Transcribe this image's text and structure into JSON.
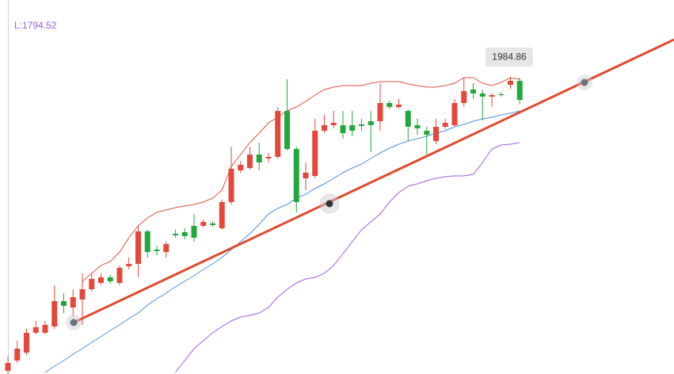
{
  "chart_data": {
    "type": "candlestick",
    "ylim": [
      1797.5,
      2033.5
    ],
    "info_label": "L:1794.52",
    "annotation": "1984.86",
    "up_color": "#e5483a",
    "down_color": "#22a83a",
    "open": [
      1799.5,
      1806,
      1811,
      1823.5,
      1823.5,
      1827.5,
      1843.5,
      1839.5,
      1844.5,
      1851,
      1855,
      1858.5,
      1855,
      1865.5,
      1867,
      1887.5,
      1876,
      1874.5,
      1886,
      1887,
      1891,
      1891,
      1892.5,
      1889.5,
      1906,
      1926,
      1927.5,
      1936,
      1933.5,
      1934.5,
      1963.5,
      1939.5,
      1921,
      1922.5,
      1951,
      1954.5,
      1954.5,
      1954.5,
      1955,
      1957,
      1957,
      1968.5,
      1966,
      1963.5,
      1954.5,
      1951,
      1944.5,
      1953.5,
      1954.5,
      1968.5,
      1977,
      1974.5,
      1972.5,
      1974,
      1980,
      1982.5
    ],
    "high": [
      1808.5,
      1818.5,
      1826,
      1831,
      1831,
      1853.5,
      1848.5,
      1851,
      1861,
      1861,
      1861,
      1860,
      1866,
      1871,
      1891,
      1888.5,
      1878.5,
      1881,
      1888.5,
      1889.5,
      1898.5,
      1895,
      1894,
      1907.5,
      1941,
      1932,
      1941,
      1943.5,
      1937,
      1966,
      1983.5,
      1941,
      1931,
      1958.5,
      1961,
      1963.5,
      1963.5,
      1963.5,
      1958.5,
      1963.5,
      1981,
      1970,
      1971,
      1964.5,
      1958.5,
      1953.5,
      1958.5,
      1958.5,
      1971,
      1984.5,
      1981,
      1977,
      1974.5,
      1975.5,
      1985,
      1984.5
    ],
    "low": [
      1797.5,
      1804.5,
      1809.5,
      1822.5,
      1822.5,
      1826,
      1836,
      1833.5,
      1828.5,
      1849.5,
      1853.5,
      1854.5,
      1853.5,
      1863.5,
      1858.5,
      1871,
      1872.5,
      1871,
      1883.5,
      1882.5,
      1881,
      1890,
      1890.5,
      1888.5,
      1904.5,
      1924.5,
      1926.5,
      1926,
      1931,
      1933.5,
      1938.5,
      1899.5,
      1913.5,
      1921,
      1949.5,
      1952.5,
      1946,
      1947.5,
      1951,
      1937.5,
      1951,
      1964.5,
      1965,
      1944.5,
      1948.5,
      1936,
      1942.5,
      1952,
      1953.5,
      1966,
      1971,
      1957.5,
      1966,
      1972.5,
      1977.5,
      1968
    ],
    "close": [
      1804.5,
      1813.5,
      1823.5,
      1827,
      1828.5,
      1843.5,
      1840.5,
      1846,
      1851,
      1857.5,
      1858.5,
      1856,
      1864.5,
      1867,
      1887.5,
      1874.5,
      1875,
      1879.5,
      1885,
      1884.5,
      1883.5,
      1893.5,
      1891.5,
      1906,
      1927,
      1929.5,
      1936,
      1931,
      1934.5,
      1963.5,
      1939.5,
      1906,
      1924.5,
      1951,
      1954.5,
      1956,
      1949.5,
      1951,
      1954,
      1954.5,
      1968.5,
      1966,
      1967.5,
      1953.5,
      1952.5,
      1948.5,
      1953.5,
      1956,
      1968.5,
      1976,
      1974.5,
      1972.5,
      1973.5,
      1973.5,
      1982.5,
      1970.5
    ],
    "bands": [
      {
        "color": "#e0503c",
        "values": [
          null,
          null,
          null,
          null,
          null,
          null,
          null,
          null,
          1856,
          1861,
          1866,
          1868.5,
          1874.5,
          1883.5,
          1891,
          1896,
          1899.5,
          1901,
          1902.5,
          1903.5,
          1904.5,
          1906,
          1908.5,
          1913.5,
          1928.5,
          1936,
          1943.5,
          1949.5,
          1956,
          1959.5,
          1963.5,
          1966,
          1969.5,
          1973.5,
          1977,
          1978.5,
          1979.5,
          1979.5,
          1979.5,
          1981,
          1982,
          1982,
          1982,
          1980.5,
          1979.5,
          1978.5,
          1978.5,
          1979.5,
          1981,
          1984.5,
          1984.5,
          1981,
          1979.5,
          1981.5,
          1984.5,
          1983.5
        ]
      },
      {
        "color": "#4a90e2",
        "values": [
          null,
          null,
          null,
          null,
          1798.5,
          1802.5,
          1806,
          1810,
          1813.5,
          1817.5,
          1821,
          1825,
          1828.5,
          1832.5,
          1836,
          1841,
          1845,
          1848.5,
          1852.5,
          1856,
          1859.5,
          1863.5,
          1867,
          1871,
          1876,
          1881,
          1886,
          1892,
          1898.5,
          1902,
          1904.5,
          1908.5,
          1911,
          1914.5,
          1917.5,
          1921,
          1924.5,
          1927.5,
          1930,
          1933.5,
          1937,
          1940,
          1942.5,
          1944.5,
          1946,
          1947.5,
          1949.5,
          1951,
          1953.5,
          1955,
          1957,
          1958.5,
          1959.5,
          1961,
          1962,
          1963.5
        ]
      },
      {
        "color": "#a259e6",
        "values": [
          null,
          null,
          null,
          null,
          null,
          null,
          null,
          null,
          null,
          null,
          null,
          null,
          null,
          null,
          null,
          null,
          null,
          null,
          1798.5,
          1806,
          1813.5,
          1818.5,
          1823.5,
          1827.5,
          1831,
          1833.5,
          1834.5,
          1836,
          1839.5,
          1846,
          1851,
          1855,
          1857.5,
          1858.5,
          1861,
          1866,
          1873.5,
          1881,
          1888.5,
          1893.5,
          1898.5,
          1906,
          1912,
          1916,
          1917.5,
          1919.5,
          1921,
          1922,
          1922.5,
          1922.5,
          1923.5,
          1931,
          1939.5,
          1942,
          1942.5,
          1943.5
        ]
      }
    ]
  }
}
